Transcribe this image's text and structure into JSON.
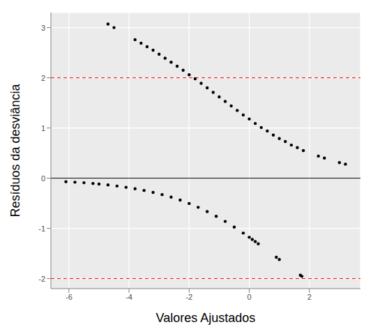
{
  "chart_data": {
    "type": "scatter",
    "xlabel": "Valores Ajustados",
    "ylabel": "Resíduos da desviância",
    "x": [
      -4.7,
      -4.5,
      -3.8,
      -3.6,
      -3.4,
      -3.2,
      -3.0,
      -2.8,
      -2.6,
      -2.4,
      -2.2,
      -2.0,
      -1.8,
      -1.6,
      -1.4,
      -1.2,
      -1.0,
      -0.8,
      -0.6,
      -0.4,
      -0.2,
      0.0,
      0.2,
      0.4,
      0.6,
      0.8,
      1.0,
      1.2,
      1.4,
      1.6,
      1.8,
      2.3,
      2.5,
      3.0,
      3.2,
      -6.1,
      -5.8,
      -5.5,
      -5.2,
      -5.0,
      -4.7,
      -4.4,
      -4.1,
      -3.8,
      -3.5,
      -3.2,
      -2.9,
      -2.6,
      -2.3,
      -2.0,
      -1.7,
      -1.4,
      -1.1,
      -0.8,
      -0.5,
      -0.2,
      0.0,
      0.1,
      0.2,
      0.3,
      0.9,
      1.0,
      1.7,
      1.75
    ],
    "values": [
      3.07,
      3.0,
      2.76,
      2.69,
      2.62,
      2.55,
      2.47,
      2.39,
      2.31,
      2.23,
      2.15,
      2.06,
      1.98,
      1.89,
      1.8,
      1.71,
      1.62,
      1.53,
      1.44,
      1.35,
      1.26,
      1.18,
      1.09,
      1.01,
      0.94,
      0.86,
      0.79,
      0.73,
      0.66,
      0.61,
      0.55,
      0.44,
      0.4,
      0.31,
      0.28,
      -0.07,
      -0.08,
      -0.09,
      -0.105,
      -0.116,
      -0.135,
      -0.156,
      -0.181,
      -0.21,
      -0.244,
      -0.283,
      -0.327,
      -0.378,
      -0.437,
      -0.504,
      -0.58,
      -0.665,
      -0.758,
      -0.861,
      -0.974,
      -1.094,
      -1.177,
      -1.22,
      -1.263,
      -1.307,
      -1.575,
      -1.621,
      -1.933,
      -1.955
    ],
    "color": "#000000",
    "marker": "circle",
    "xlim": [
      -6.6,
      3.7
    ],
    "ylim": [
      -2.2,
      3.3
    ],
    "xticks": [
      -6,
      -4,
      -2,
      0,
      2
    ],
    "yticks": [
      -2,
      -1,
      0,
      1,
      2,
      3
    ],
    "grid": true,
    "hlines": [
      {
        "value": 2,
        "color": "#ff0000",
        "line_style": "dashed"
      },
      {
        "value": 0,
        "color": "#000000",
        "line_style": "solid"
      },
      {
        "value": -2,
        "color": "#ff0000",
        "line_style": "dashed"
      }
    ]
  }
}
